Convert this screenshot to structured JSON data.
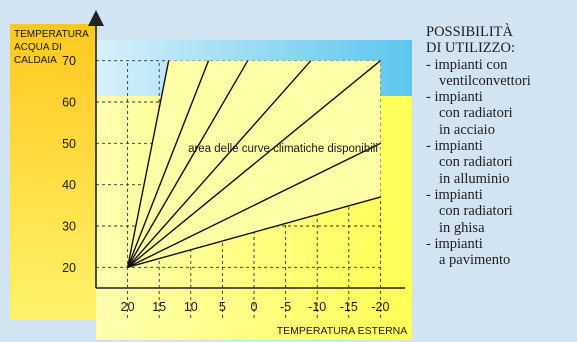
{
  "chart_data": {
    "type": "line",
    "title": "",
    "ylabel": "TEMPERATURA ACQUA DI CALDAIA",
    "ylabel_lines": [
      "TEMPERATURA",
      "ACQUA DI",
      "CALDAIA"
    ],
    "xlabel": "TEMPERATURA ESTERNA",
    "x_ticks": [
      "20",
      "15",
      "10",
      "5",
      "0",
      "-5",
      "-10",
      "-15",
      "-20"
    ],
    "y_ticks": [
      "20",
      "30",
      "40",
      "50",
      "60",
      "70"
    ],
    "xlim": [
      25,
      -25
    ],
    "ylim": [
      15,
      75
    ],
    "grid": true,
    "area_label": "area delle curve climatiche disponibili",
    "series": [
      {
        "values": [
          [
            20,
            20
          ],
          [
            13.5,
            70
          ]
        ]
      },
      {
        "values": [
          [
            20,
            20
          ],
          [
            7.2,
            70
          ]
        ]
      },
      {
        "values": [
          [
            20,
            20
          ],
          [
            1,
            70
          ]
        ]
      },
      {
        "values": [
          [
            20,
            20
          ],
          [
            -9,
            70
          ]
        ]
      },
      {
        "values": [
          [
            20,
            20
          ],
          [
            -20,
            70
          ]
        ]
      },
      {
        "values": [
          [
            20,
            20
          ],
          [
            -20,
            50
          ]
        ]
      },
      {
        "values": [
          [
            20,
            20
          ],
          [
            -20,
            37
          ]
        ]
      }
    ],
    "colors": {
      "background": "#d2e3f2",
      "band": "#ffff70",
      "ylabel_band": "#ffd23a",
      "band_top": "#a8d8f0",
      "area_fill": "#ffffa8",
      "lines": "#111111",
      "grid": "#333333"
    }
  },
  "sidebar": {
    "title_lines": [
      "POSSIBILITÀ",
      "DI UTILIZZO:"
    ],
    "items": [
      [
        "- impianti con",
        "ventilconvettori"
      ],
      [
        "- impianti",
        "con radiatori",
        "in acciaio"
      ],
      [
        "- impianti",
        "con radiatori",
        "in alluminio"
      ],
      [
        "- impianti",
        "con radiatori",
        "in ghisa"
      ],
      [
        "- impianti",
        "a pavimento"
      ]
    ]
  }
}
